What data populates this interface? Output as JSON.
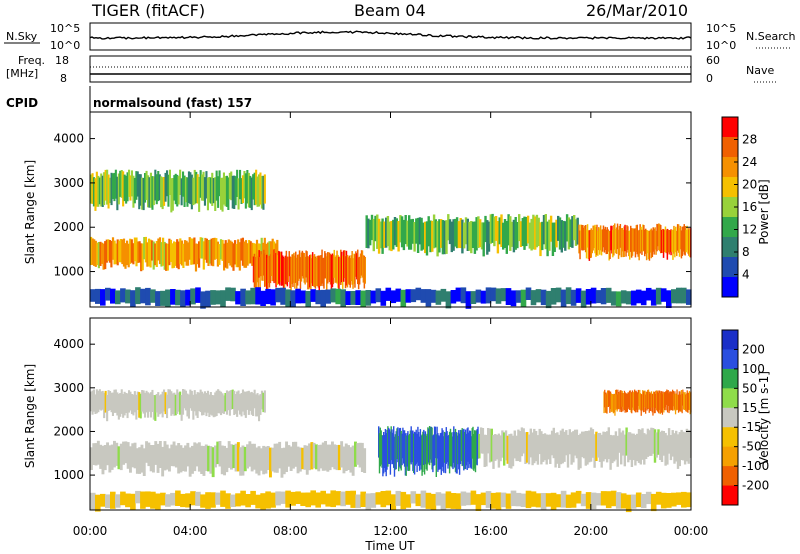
{
  "header": {
    "station": "TIGER (fitACF)",
    "beam": "Beam 04",
    "date": "26/Mar/2010"
  },
  "top_panels": {
    "nsky_label": "N.Sky",
    "nsearch_label": "N.Search",
    "nsky_ticks": [
      "10^5",
      "10^0"
    ],
    "nsearch_ticks": [
      "10^5",
      "10^0"
    ],
    "freq_label_1": "Freq.",
    "freq_label_2": "[MHz]",
    "freq_ticks": [
      "18",
      "8"
    ],
    "nave_label": "Nave",
    "nave_ticks": [
      "60",
      "0"
    ],
    "cpid_label": "CPID",
    "cpid_text": "normalsound (fast) 157"
  },
  "chart_data": [
    {
      "type": "heatmap",
      "name": "power-panel",
      "ylabel": "Slant Range [km]",
      "ylim": [
        200,
        4600
      ],
      "yticks": [
        1000,
        2000,
        3000,
        4000
      ],
      "xlim": [
        0,
        24
      ],
      "xticks": [
        "00:00",
        "04:00",
        "08:00",
        "12:00",
        "16:00",
        "20:00",
        "00:00"
      ],
      "colorbar": {
        "label": "Power [dB]",
        "ticks": [
          "28",
          "24",
          "20",
          "16",
          "12",
          "8",
          "4"
        ],
        "colors": [
          "#0000ff",
          "#1f4bb0",
          "#2f7f6f",
          "#32a84a",
          "#98d23a",
          "#f5c000",
          "#f59000",
          "#f06000",
          "#ff0000"
        ]
      },
      "bands": [
        {
          "t0": 0,
          "t1": 7.5,
          "r0": 1050,
          "r1": 1700,
          "value_db": 22
        },
        {
          "t0": 6.5,
          "t1": 11.0,
          "r0": 600,
          "r1": 1400,
          "value_db": 26
        },
        {
          "t0": 0,
          "t1": 7.0,
          "r0": 2400,
          "r1": 3200,
          "value_db": 14
        },
        {
          "t0": 11.0,
          "t1": 19.5,
          "r0": 1400,
          "r1": 2200,
          "value_db": 14
        },
        {
          "t0": 19.5,
          "t1": 24,
          "r0": 1300,
          "r1": 2000,
          "value_db": 24
        },
        {
          "t0": 0,
          "t1": 24,
          "r0": 200,
          "r1": 600,
          "value_db": 6
        }
      ]
    },
    {
      "type": "heatmap",
      "name": "velocity-panel",
      "ylabel": "Slant Range [km]",
      "xlabel": "Time UT",
      "ylim": [
        200,
        4600
      ],
      "yticks": [
        1000,
        2000,
        3000,
        4000
      ],
      "xlim": [
        0,
        24
      ],
      "xticks": [
        "00:00",
        "04:00",
        "08:00",
        "12:00",
        "16:00",
        "20:00",
        "00:00"
      ],
      "colorbar": {
        "label": "Velocity [m s-1]",
        "ticks": [
          "200",
          "100",
          "50",
          "15",
          "-15",
          "-50",
          "-100",
          "-200"
        ],
        "colors": [
          "#1a2fc8",
          "#2a4fe0",
          "#2fa84a",
          "#8fdc4a",
          "#c8c8c0",
          "#f5c000",
          "#f5a000",
          "#f06000",
          "#ff0000"
        ]
      },
      "bands": [
        {
          "t0": 0,
          "t1": 11.0,
          "r0": 1000,
          "r1": 1700,
          "value_ms": 0
        },
        {
          "t0": 0,
          "t1": 7.0,
          "r0": 2300,
          "r1": 2900,
          "value_ms": 0
        },
        {
          "t0": 11.5,
          "t1": 15.5,
          "r0": 1000,
          "r1": 2000,
          "value_ms": 150
        },
        {
          "t0": 15.5,
          "t1": 24,
          "r0": 1200,
          "r1": 2000,
          "value_ms": 0
        },
        {
          "t0": 20.5,
          "t1": 24,
          "r0": 2400,
          "r1": 2900,
          "value_ms": -150
        },
        {
          "t0": 0,
          "t1": 24,
          "r0": 200,
          "r1": 600,
          "value_ms": -40
        }
      ]
    }
  ]
}
